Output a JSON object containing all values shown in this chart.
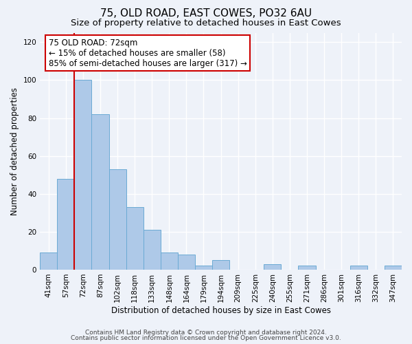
{
  "title": "75, OLD ROAD, EAST COWES, PO32 6AU",
  "subtitle": "Size of property relative to detached houses in East Cowes",
  "xlabel": "Distribution of detached houses by size in East Cowes",
  "ylabel": "Number of detached properties",
  "bar_labels": [
    "41sqm",
    "57sqm",
    "72sqm",
    "87sqm",
    "102sqm",
    "118sqm",
    "133sqm",
    "148sqm",
    "164sqm",
    "179sqm",
    "194sqm",
    "209sqm",
    "225sqm",
    "240sqm",
    "255sqm",
    "271sqm",
    "286sqm",
    "301sqm",
    "316sqm",
    "332sqm",
    "347sqm"
  ],
  "bar_values": [
    9,
    48,
    100,
    82,
    53,
    33,
    21,
    9,
    8,
    2,
    5,
    0,
    0,
    3,
    0,
    2,
    0,
    0,
    2,
    0,
    2
  ],
  "bar_color": "#aec9e8",
  "bar_edge_color": "#6aaad4",
  "vline_color": "#cc0000",
  "annotation_line1": "75 OLD ROAD: 72sqm",
  "annotation_line2": "← 15% of detached houses are smaller (58)",
  "annotation_line3": "85% of semi-detached houses are larger (317) →",
  "annotation_box_facecolor": "white",
  "annotation_box_edgecolor": "#cc0000",
  "ylim": [
    0,
    125
  ],
  "yticks": [
    0,
    20,
    40,
    60,
    80,
    100,
    120
  ],
  "footer_line1": "Contains HM Land Registry data © Crown copyright and database right 2024.",
  "footer_line2": "Contains public sector information licensed under the Open Government Licence v3.0.",
  "bg_color": "#eef2f9",
  "plot_bg_color": "#eef2f9",
  "title_fontsize": 11,
  "subtitle_fontsize": 9.5,
  "axis_label_fontsize": 8.5,
  "tick_fontsize": 7.5,
  "annotation_fontsize": 8.5,
  "footer_fontsize": 6.5
}
